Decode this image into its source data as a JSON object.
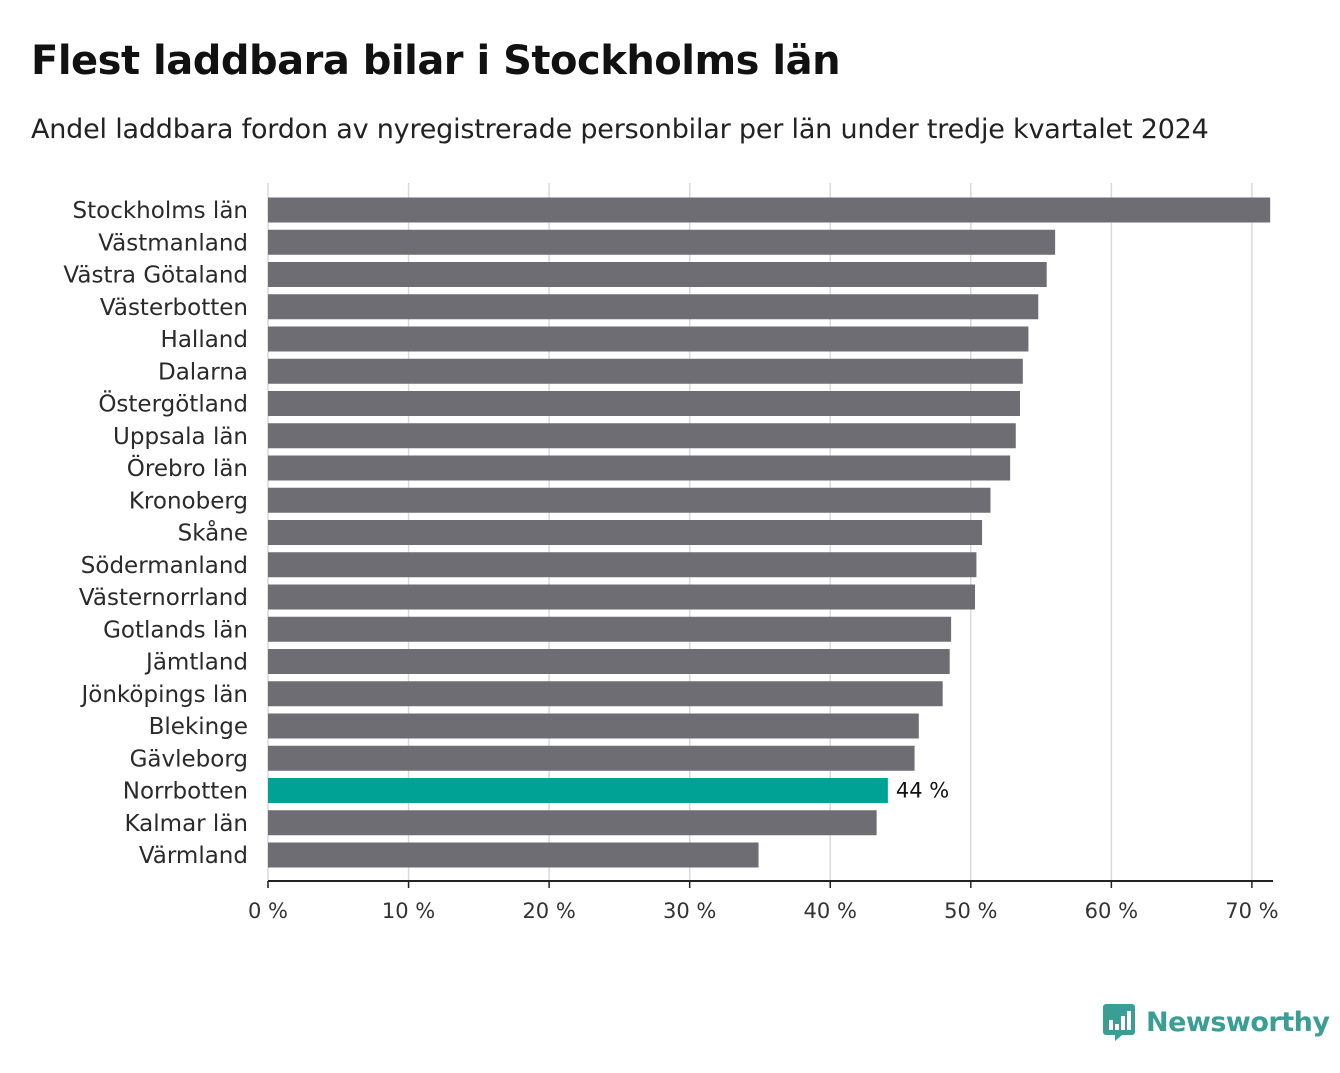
{
  "title": "Flest laddbara bilar i Stockholms län",
  "subtitle": "Andel laddbara fordon av nyregistrerade personbilar per län under tredje kvartalet 2024",
  "brand": {
    "name": "Newsworthy",
    "icon": "newsworthy-logo-icon",
    "color": "#3a9e94"
  },
  "colors": {
    "bar": "#6e6d74",
    "highlight": "#00a295",
    "grid": "#d9d9d9",
    "axis": "#222222"
  },
  "chart_data": {
    "type": "bar",
    "orientation": "horizontal",
    "title": "Flest laddbara bilar i Stockholms län",
    "subtitle": "Andel laddbara fordon av nyregistrerade personbilar per län under tredje kvartalet 2024",
    "xlabel": "",
    "ylabel": "",
    "xlim": [
      0,
      71.5
    ],
    "xticks": [
      0,
      10,
      20,
      30,
      40,
      50,
      60,
      70
    ],
    "xtick_labels": [
      "0 %",
      "10 %",
      "20 %",
      "30 %",
      "40 %",
      "50 %",
      "60 %",
      "70 %"
    ],
    "grid": "vertical",
    "categories": [
      "Stockholms län",
      "Västmanland",
      "Västra Götaland",
      "Västerbotten",
      "Halland",
      "Dalarna",
      "Östergötland",
      "Uppsala län",
      "Örebro län",
      "Kronoberg",
      "Skåne",
      "Södermanland",
      "Västernorrland",
      "Gotlands län",
      "Jämtland",
      "Jönköpings län",
      "Blekinge",
      "Gävleborg",
      "Norrbotten",
      "Kalmar län",
      "Värmland"
    ],
    "values": [
      71.3,
      56.0,
      55.4,
      54.8,
      54.1,
      53.7,
      53.5,
      53.2,
      52.8,
      51.4,
      50.8,
      50.4,
      50.3,
      48.6,
      48.5,
      48.0,
      46.3,
      46.0,
      44.1,
      43.3,
      34.9
    ],
    "highlight": {
      "category": "Norrbotten",
      "label": "44 %"
    }
  }
}
